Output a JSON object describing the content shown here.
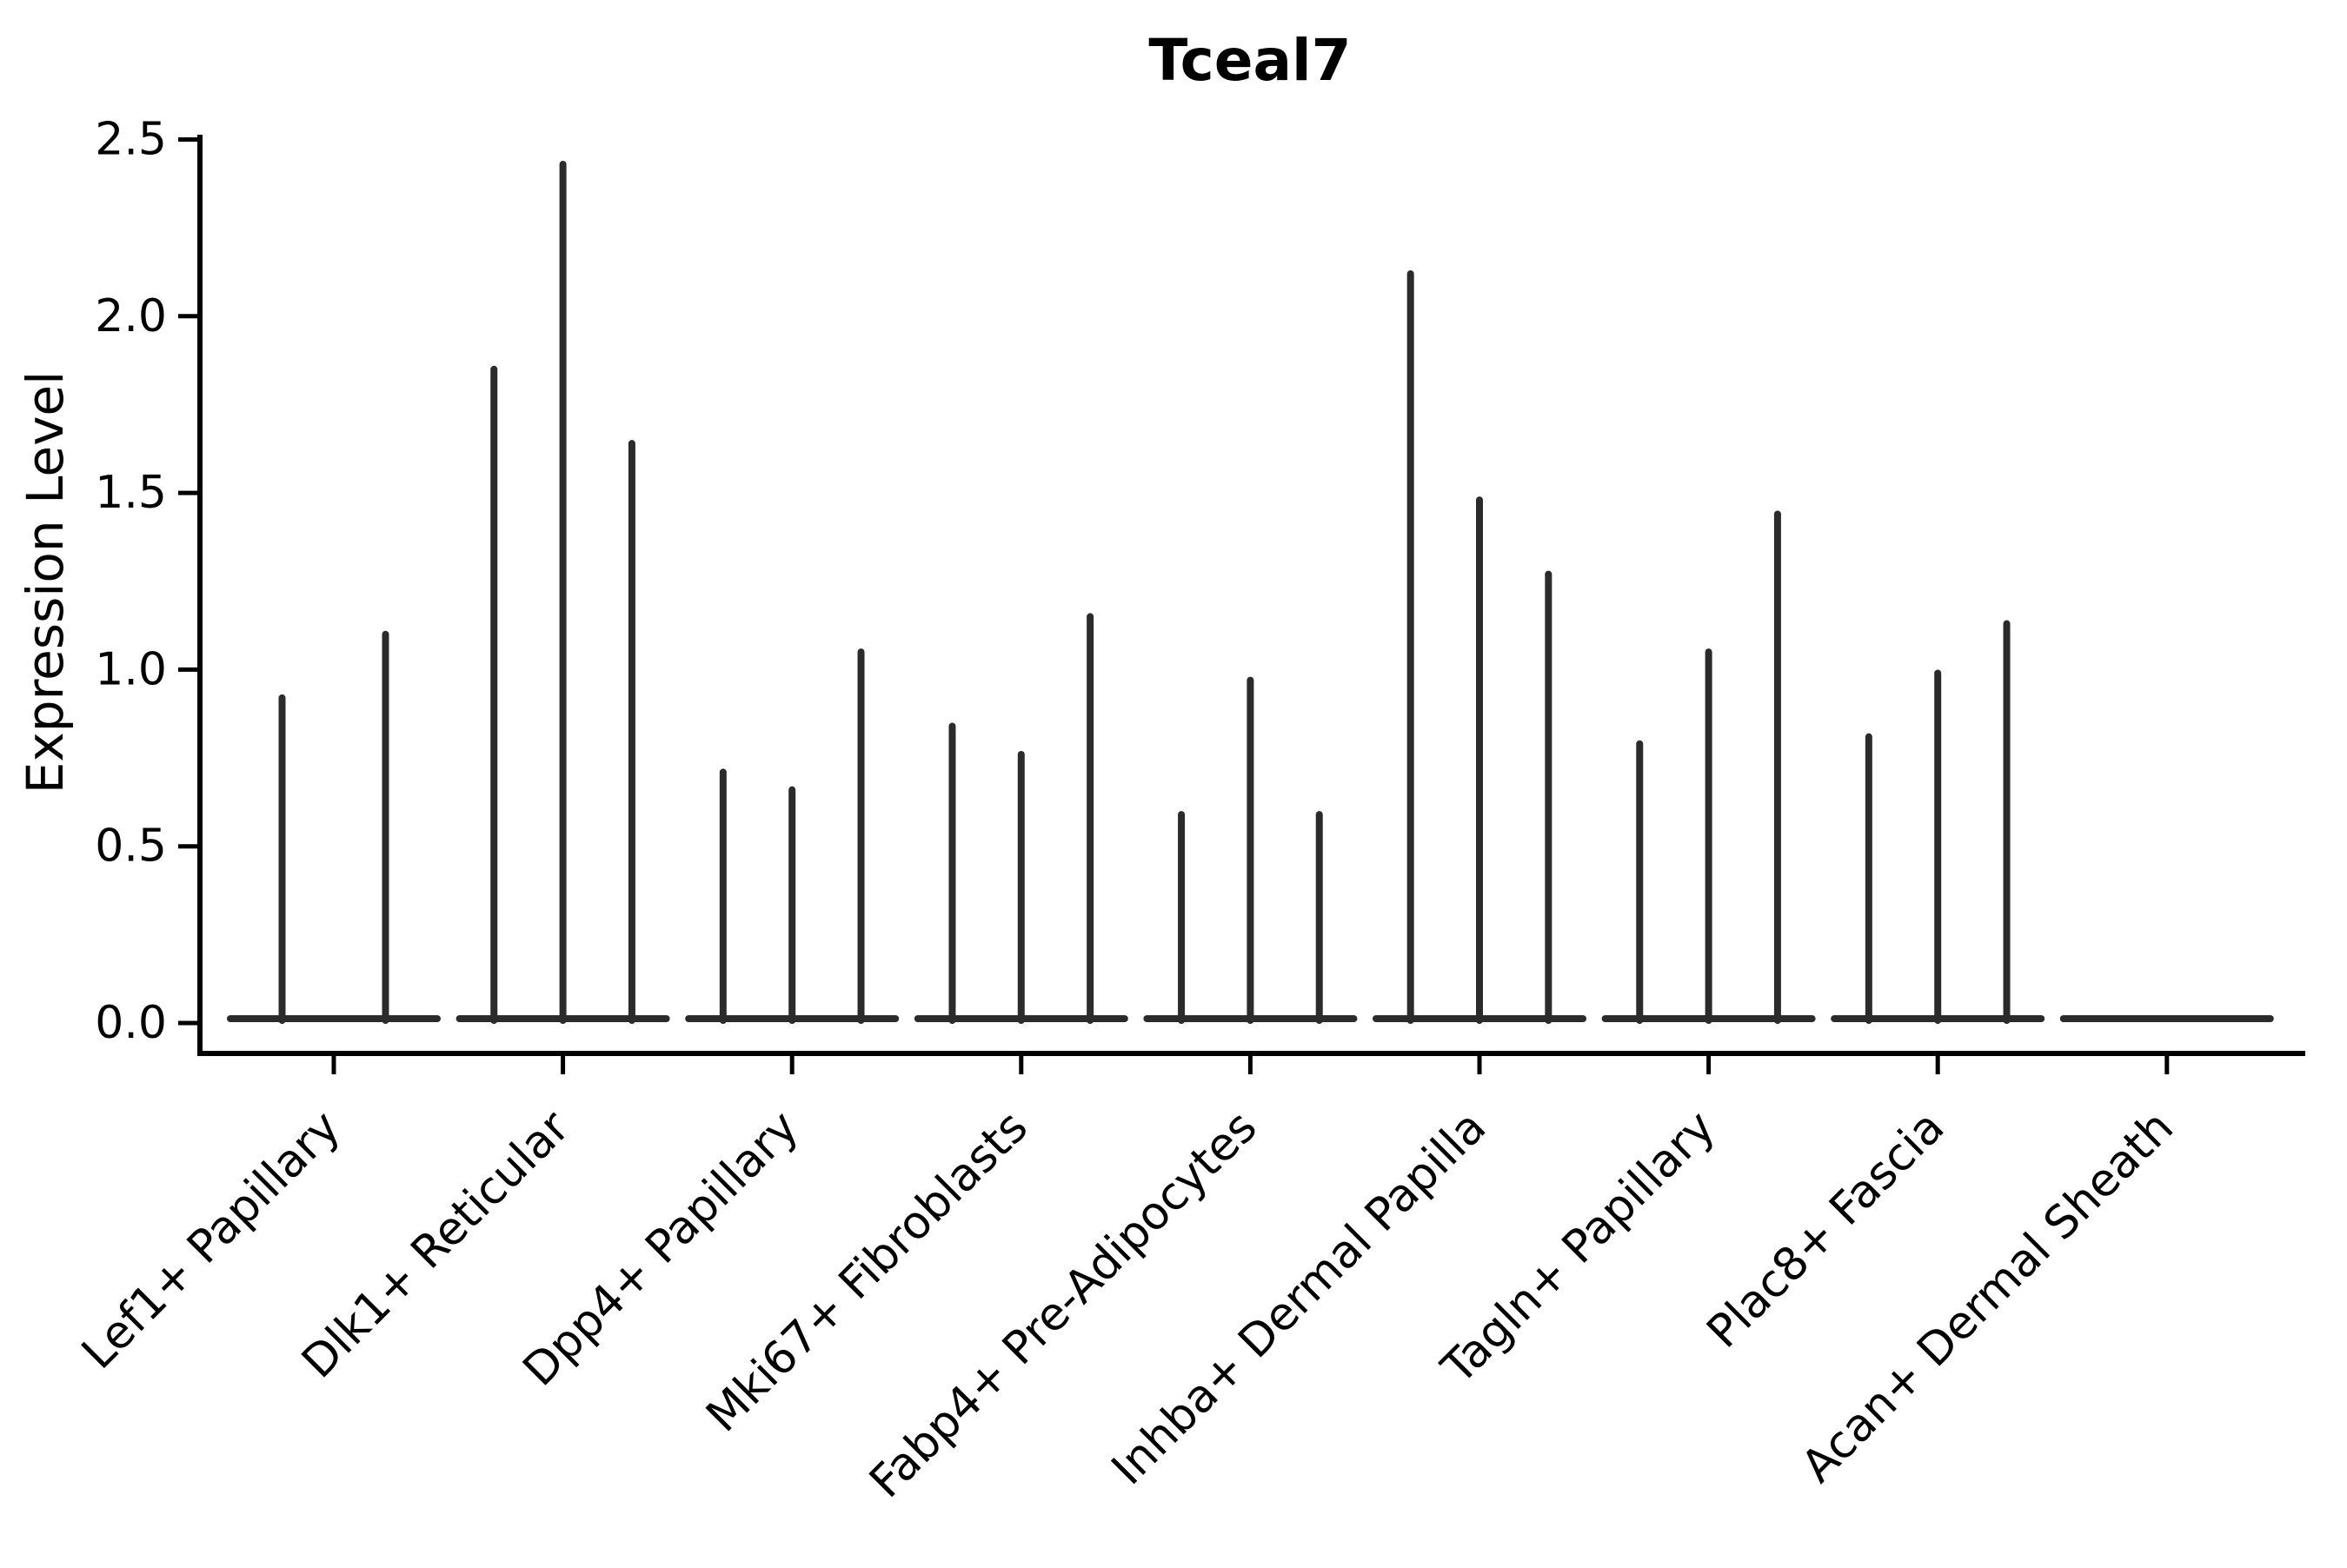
{
  "figure": {
    "background_color": "#ffffff",
    "axis_color": "#000000",
    "violin_color": "#2b2b2b"
  },
  "chart_data": {
    "type": "violin",
    "title": "Tceal7",
    "xlabel": "",
    "ylabel": "Expression Level",
    "ylim": [
      -0.09,
      2.5
    ],
    "yticks": [
      "0.0",
      "0.5",
      "1.0",
      "1.5",
      "2.0",
      "2.5"
    ],
    "grid": false,
    "legend": null,
    "x_tick_rotation": 45,
    "categories": [
      "Lef1+ Papillary",
      "Dlk1+ Reticular",
      "Dpp4+ Papillary",
      "Mki67+ Fibroblasts",
      "Fabp4+ Pre-Adipocytes",
      "Inhba+ Dermal Papilla",
      "Tagln+ Papillary",
      "Plac8+ Fascia",
      "Acan+ Dermal Sheath"
    ],
    "groups": [
      {
        "category": "Lef1+ Papillary",
        "violin_max_values": [
          0.92,
          1.1
        ]
      },
      {
        "category": "Dlk1+ Reticular",
        "violin_max_values": [
          1.85,
          2.43,
          1.64
        ]
      },
      {
        "category": "Dpp4+ Papillary",
        "violin_max_values": [
          0.71,
          0.66,
          1.05
        ]
      },
      {
        "category": "Mki67+ Fibroblasts",
        "violin_max_values": [
          0.84,
          0.76,
          1.15
        ]
      },
      {
        "category": "Fabp4+ Pre-Adipocytes",
        "violin_max_values": [
          0.59,
          0.97,
          0.59
        ]
      },
      {
        "category": "Inhba+ Dermal Papilla",
        "violin_max_values": [
          2.12,
          1.48,
          1.27
        ]
      },
      {
        "category": "Tagln+ Papillary",
        "violin_max_values": [
          0.79,
          1.05,
          1.44
        ]
      },
      {
        "category": "Plac8+ Fascia",
        "violin_max_values": [
          0.81,
          0.99,
          1.13
        ]
      },
      {
        "category": "Acan+ Dermal Sheath",
        "violin_max_values": []
      }
    ],
    "description": "Violin plot of Tceal7 expression level per fibroblast cluster; violins are extremely thin (baseline bar at 0 with a narrow spike up to each violin's maximum)."
  }
}
